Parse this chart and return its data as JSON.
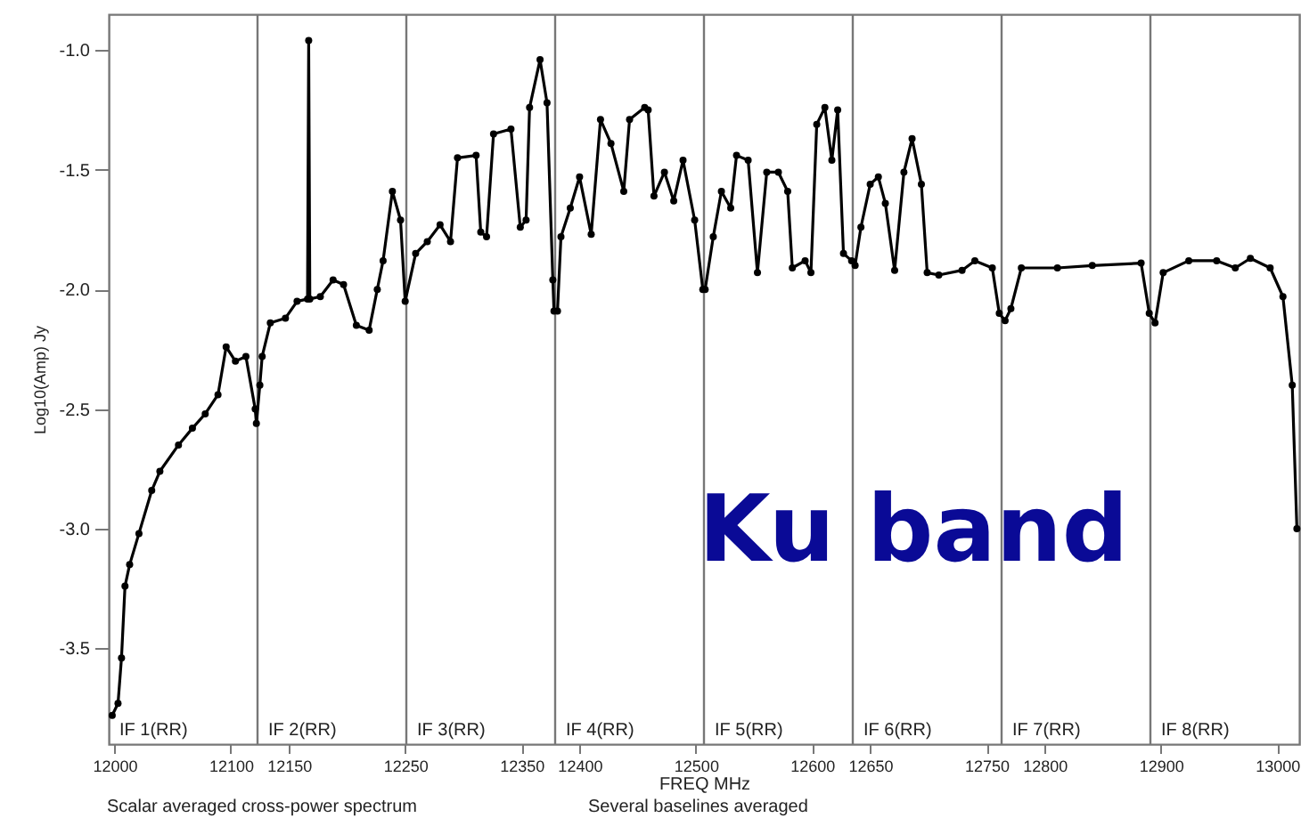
{
  "chart_data": {
    "type": "line",
    "xlabel": "FREQ MHz",
    "ylabel": "Log10(Amp) Jy",
    "annotations": [
      "Ku band",
      "Scalar averaged cross-power spectrum",
      "Several baselines averaged",
      "IF 1(RR)"
    ],
    "marker": "circle",
    "xlim": [
      11995,
      13019
    ],
    "xticks": [
      12000,
      12100,
      12150,
      12250,
      12350,
      12400,
      12500,
      12600,
      12650,
      12750,
      12800,
      12900,
      13000
    ],
    "ylim": [
      -3.9,
      -0.85
    ],
    "yticks": [
      {
        "value": -1,
        "label": "-1.0"
      },
      {
        "value": -1.5,
        "label": "-1.5"
      },
      {
        "value": -2,
        "label": "-2.0"
      },
      {
        "value": -2.5,
        "label": "-2.5"
      },
      {
        "value": -3,
        "label": "-3.0"
      },
      {
        "value": -3.5,
        "label": "-3.5"
      }
    ],
    "ref_lines": [
      {
        "axis": "x",
        "value": 12123,
        "label": "IF 2(RR)",
        "color": "#777777"
      },
      {
        "axis": "x",
        "value": 12251,
        "label": "IF 3(RR)",
        "color": "#777777"
      },
      {
        "axis": "x",
        "value": 12379,
        "label": "IF 4(RR)",
        "color": "#777777"
      },
      {
        "axis": "x",
        "value": 12507,
        "label": "IF 5(RR)",
        "color": "#777777"
      },
      {
        "axis": "x",
        "value": 12635,
        "label": "IF 6(RR)",
        "color": "#777777"
      },
      {
        "axis": "x",
        "value": 12763,
        "label": "IF 7(RR)",
        "color": "#777777"
      },
      {
        "axis": "x",
        "value": 12891,
        "label": "IF 8(RR)",
        "color": "#777777"
      }
    ],
    "x": [
      11998,
      12003,
      12006,
      12009,
      12013,
      12021,
      12032,
      12039,
      12055,
      12067,
      12078,
      12089,
      12096,
      12104,
      12113,
      12121,
      12122,
      12125,
      12127,
      12134,
      12147,
      12157,
      12166,
      12167,
      12168,
      12177,
      12188,
      12197,
      12208,
      12219,
      12226,
      12231,
      12239,
      12246,
      12250,
      12259,
      12269,
      12280,
      12289,
      12295,
      12311,
      12315,
      12320,
      12326,
      12341,
      12349,
      12354,
      12357,
      12366,
      12372,
      12377,
      12378,
      12381,
      12384,
      12392,
      12400,
      12410,
      12418,
      12427,
      12438,
      12443,
      12456,
      12459,
      12464,
      12473,
      12481,
      12489,
      12499,
      12506,
      12508,
      12515,
      12522,
      12530,
      12535,
      12545,
      12553,
      12561,
      12571,
      12579,
      12583,
      12594,
      12599,
      12604,
      12611,
      12617,
      12622,
      12627,
      12634,
      12637,
      12642,
      12650,
      12657,
      12663,
      12671,
      12679,
      12686,
      12694,
      12699,
      12709,
      12729,
      12740,
      12755,
      12761,
      12766,
      12771,
      12780,
      12811,
      12841,
      12883,
      12890,
      12895,
      12902,
      12924,
      12948,
      12964,
      12977,
      12994,
      13005,
      13013,
      13017
    ],
    "series": [
      {
        "color": "#000000",
        "values": [
          -3.78,
          -3.73,
          -3.54,
          -3.24,
          -3.15,
          -3.02,
          -2.84,
          -2.76,
          -2.65,
          -2.58,
          -2.52,
          -2.44,
          -2.24,
          -2.3,
          -2.28,
          -2.5,
          -2.56,
          -2.4,
          -2.28,
          -2.14,
          -2.12,
          -2.05,
          -2.04,
          -0.96,
          -2.04,
          -2.03,
          -1.96,
          -1.98,
          -2.15,
          -2.17,
          -2.0,
          -1.88,
          -1.59,
          -1.71,
          -2.05,
          -1.85,
          -1.8,
          -1.73,
          -1.8,
          -1.45,
          -1.44,
          -1.76,
          -1.78,
          -1.35,
          -1.33,
          -1.74,
          -1.71,
          -1.24,
          -1.04,
          -1.22,
          -1.96,
          -2.09,
          -2.09,
          -1.78,
          -1.66,
          -1.53,
          -1.77,
          -1.29,
          -1.39,
          -1.59,
          -1.29,
          -1.24,
          -1.25,
          -1.61,
          -1.51,
          -1.63,
          -1.46,
          -1.71,
          -2.0,
          -2.0,
          -1.78,
          -1.59,
          -1.66,
          -1.44,
          -1.46,
          -1.93,
          -1.51,
          -1.51,
          -1.59,
          -1.91,
          -1.88,
          -1.93,
          -1.31,
          -1.24,
          -1.46,
          -1.25,
          -1.85,
          -1.88,
          -1.9,
          -1.74,
          -1.56,
          -1.53,
          -1.64,
          -1.92,
          -1.51,
          -1.37,
          -1.56,
          -1.93,
          -1.94,
          -1.92,
          -1.88,
          -1.91,
          -2.1,
          -2.13,
          -2.08,
          -1.91,
          -1.91,
          -1.9,
          -1.89,
          -2.1,
          -2.14,
          -1.93,
          -1.88,
          -1.88,
          -1.91,
          -1.87,
          -1.91,
          -2.03,
          -2.4,
          -3.0
        ]
      }
    ]
  }
}
